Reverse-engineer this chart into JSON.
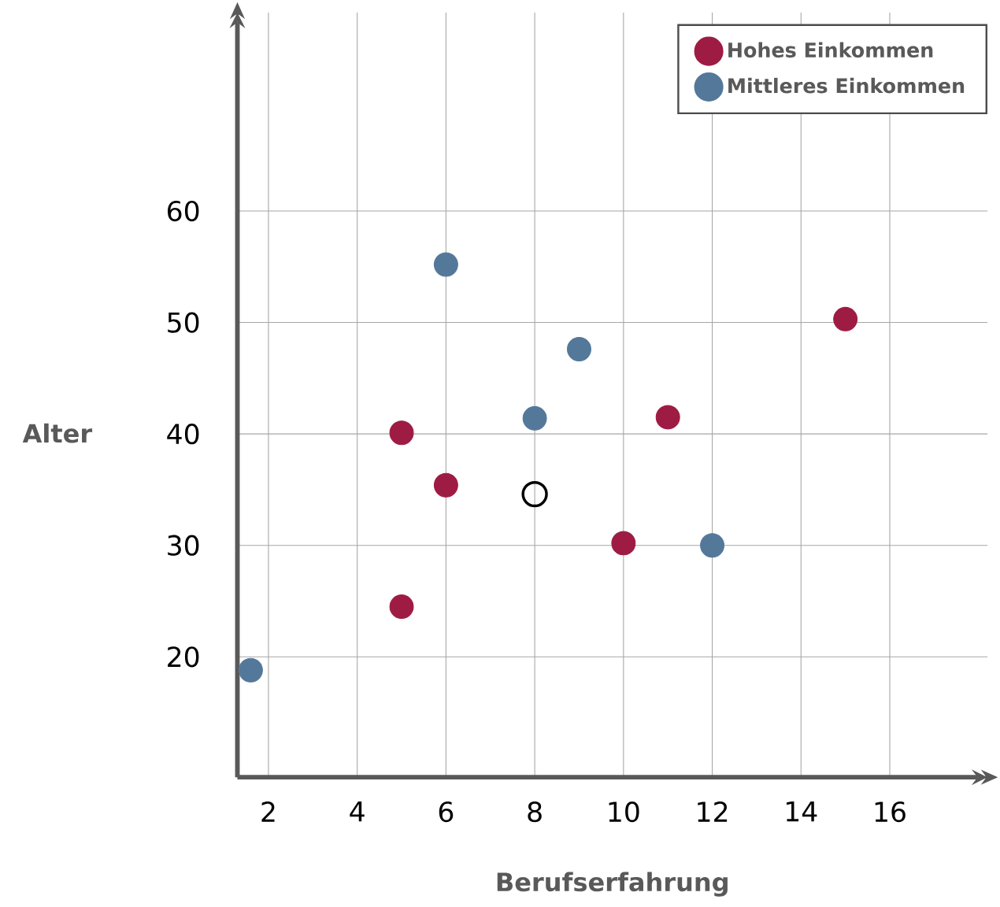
{
  "chart_data": {
    "type": "scatter",
    "xlabel": "Berufserfahrung",
    "ylabel": "Alter",
    "xlim": [
      1.3,
      18.2
    ],
    "ylim": [
      9.2,
      77.8
    ],
    "xticks": [
      2,
      4,
      6,
      8,
      10,
      12,
      14,
      16
    ],
    "yticks": [
      20,
      30,
      40,
      50,
      60
    ],
    "grid": true,
    "legend": "top right",
    "marker": "circle",
    "series": [
      {
        "name": "Hohes Einkommen",
        "color": "#9e1b44",
        "x": [
          5,
          6,
          5,
          10,
          11,
          15
        ],
        "values": [
          40.1,
          35.4,
          24.5,
          30.2,
          41.5,
          50.3
        ]
      },
      {
        "name": "Mittleres Einkommen",
        "color": "#54789a",
        "x": [
          6,
          9,
          8,
          12,
          1.6
        ],
        "values": [
          55.2,
          47.6,
          41.4,
          30,
          18.8
        ]
      },
      {
        "color": "#000000",
        "x": [
          8
        ],
        "values": [
          34.6
        ]
      }
    ]
  }
}
